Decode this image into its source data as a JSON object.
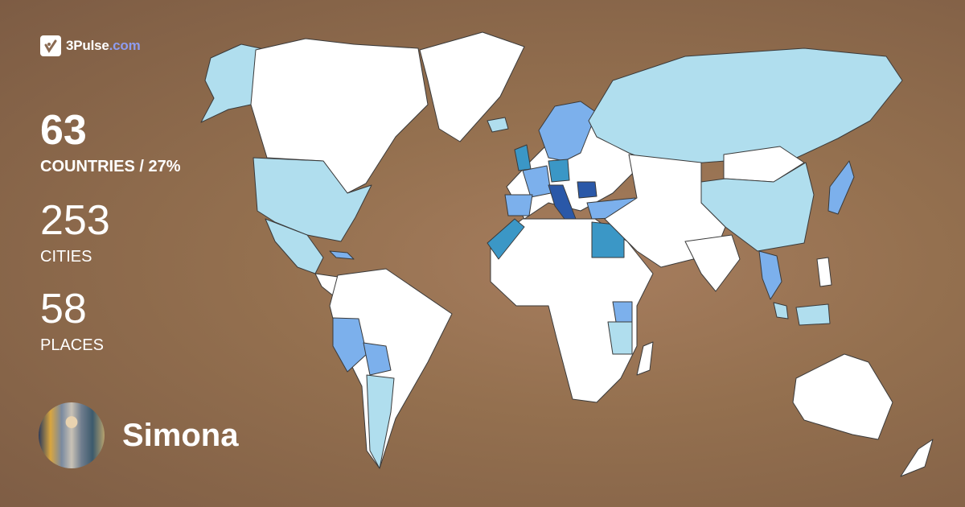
{
  "brand": {
    "name": "3Pulse",
    "domain": ".com",
    "icon": "check-pulse-icon"
  },
  "stats": [
    {
      "value": "63",
      "label": "COUNTRIES / 27%"
    },
    {
      "value": "253",
      "label": "CITIES"
    },
    {
      "value": "58",
      "label": "PLACES"
    }
  ],
  "user": {
    "name": "Simona"
  },
  "colors": {
    "unvisited": "#ffffff",
    "visited_light": "#b0deee",
    "visited_mid": "#7cb0ec",
    "visited_teal": "#3b97c6",
    "visited_dark": "#2a58a8",
    "background": "#94704f"
  }
}
